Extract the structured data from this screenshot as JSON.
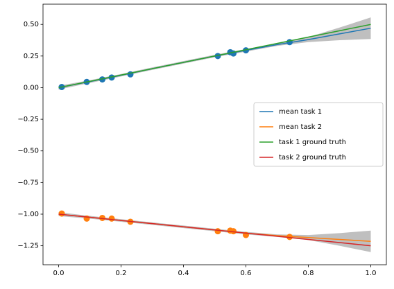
{
  "chart_data": {
    "type": "line",
    "x": [
      0,
      0.1,
      0.2,
      0.3,
      0.4,
      0.5,
      0.6,
      0.7,
      0.8,
      0.9,
      1.0
    ],
    "series": [
      {
        "name": "mean task 1",
        "color": "#1f77b4",
        "values": [
          0,
          0.048,
          0.098,
          0.15,
          0.2,
          0.25,
          0.295,
          0.34,
          0.38,
          0.425,
          0.47
        ]
      },
      {
        "name": "mean task 2",
        "color": "#ff7f0e",
        "values": [
          -1.0,
          -1.025,
          -1.05,
          -1.075,
          -1.1,
          -1.125,
          -1.15,
          -1.17,
          -1.185,
          -1.2,
          -1.215
        ]
      },
      {
        "name": "task 1 ground truth",
        "color": "#2ca02c",
        "values": [
          0,
          0.05,
          0.1,
          0.15,
          0.2,
          0.25,
          0.3,
          0.35,
          0.4,
          0.45,
          0.5
        ]
      },
      {
        "name": "task 2 ground truth",
        "color": "#d62728",
        "values": [
          -1.0,
          -1.025,
          -1.05,
          -1.075,
          -1.1,
          -1.125,
          -1.15,
          -1.175,
          -1.2,
          -1.225,
          -1.25
        ]
      }
    ],
    "bands": [
      {
        "color": "#808080",
        "lower": [
          -0.015,
          0.037,
          0.088,
          0.14,
          0.19,
          0.24,
          0.285,
          0.33,
          0.36,
          0.375,
          0.385
        ],
        "upper": [
          0.015,
          0.059,
          0.108,
          0.16,
          0.21,
          0.26,
          0.305,
          0.35,
          0.4,
          0.475,
          0.555
        ]
      },
      {
        "color": "#808080",
        "lower": [
          -1.015,
          -1.036,
          -1.06,
          -1.085,
          -1.11,
          -1.135,
          -1.16,
          -1.18,
          -1.205,
          -1.25,
          -1.3
        ]
      },
      {
        "color": "#808080",
        "upper": [
          -0.985,
          -1.014,
          -1.04,
          -1.065,
          -1.09,
          -1.115,
          -1.14,
          -1.16,
          -1.165,
          -1.15,
          -1.13
        ]
      }
    ],
    "scatter": [
      {
        "color": "#1f77b4",
        "x": [
          0.01,
          0.09,
          0.14,
          0.17,
          0.23,
          0.51,
          0.55,
          0.56,
          0.6,
          0.74
        ],
        "values": [
          0.005,
          0.045,
          0.065,
          0.08,
          0.105,
          0.25,
          0.28,
          0.27,
          0.295,
          0.36
        ]
      },
      {
        "color": "#ff7f0e",
        "x": [
          0.01,
          0.09,
          0.14,
          0.17,
          0.23,
          0.51,
          0.55,
          0.56,
          0.6,
          0.74
        ],
        "values": [
          -0.995,
          -1.035,
          -1.03,
          -1.035,
          -1.06,
          -1.135,
          -1.13,
          -1.135,
          -1.165,
          -1.18
        ]
      }
    ],
    "xlim": [
      -0.05,
      1.05
    ],
    "ylim": [
      -1.4,
      0.66
    ],
    "xticks": [
      {
        "value": 0,
        "label": "0.0"
      },
      0.2,
      0.4,
      0.6,
      0.8,
      {
        "value": 1,
        "label": "1.0"
      }
    ],
    "yticks": [
      {
        "value": -1.25,
        "label": "−1.25"
      },
      {
        "value": -1,
        "label": "−1.00"
      },
      {
        "value": -0.75,
        "label": "−0.75"
      },
      {
        "value": -0.5,
        "label": "−0.50"
      },
      {
        "value": -0.25,
        "label": "−0.25"
      },
      {
        "value": 0,
        "label": "0.00"
      },
      {
        "value": 0.25,
        "label": "0.25"
      },
      {
        "value": 0.5,
        "label": "0.50"
      }
    ],
    "legend": "center right"
  }
}
